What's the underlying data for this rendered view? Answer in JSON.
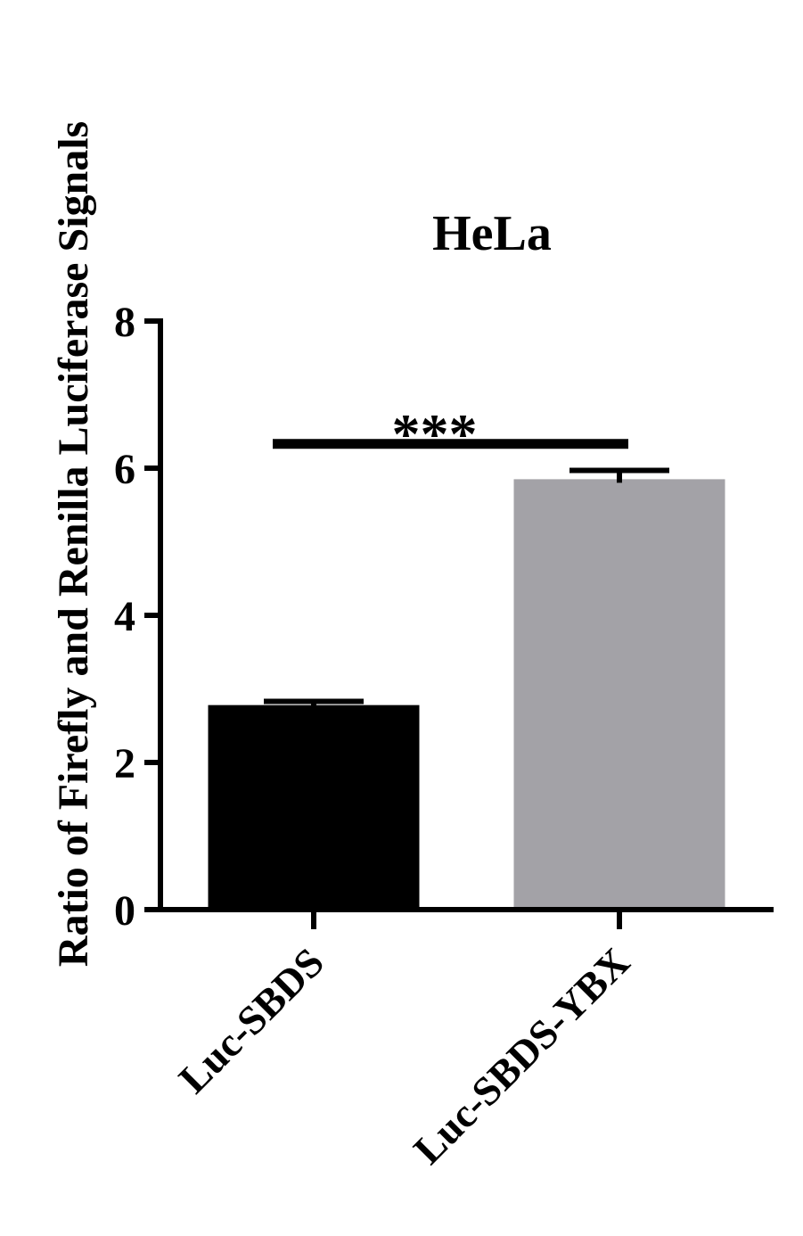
{
  "chart_data": {
    "type": "bar",
    "title": "HeLa",
    "ylabel": "Ratio of Firefly and Renilla Luciferase Signals",
    "xlabel": "",
    "categories": [
      "Luc-SBDS",
      "Luc-SBDS-YBX"
    ],
    "values": [
      2.78,
      5.85
    ],
    "errors": [
      0.05,
      0.12
    ],
    "bar_colors": [
      "#000000",
      "#a3a2a7"
    ],
    "ylim": [
      0,
      8
    ],
    "yticks": [
      "0",
      "2",
      "4",
      "6",
      "8"
    ],
    "ytick_values": [
      0,
      2,
      4,
      6,
      8
    ],
    "grid": false,
    "significance": {
      "label": "***",
      "from": "Luc-SBDS",
      "to": "Luc-SBDS-YBX",
      "y": 6.33
    }
  }
}
